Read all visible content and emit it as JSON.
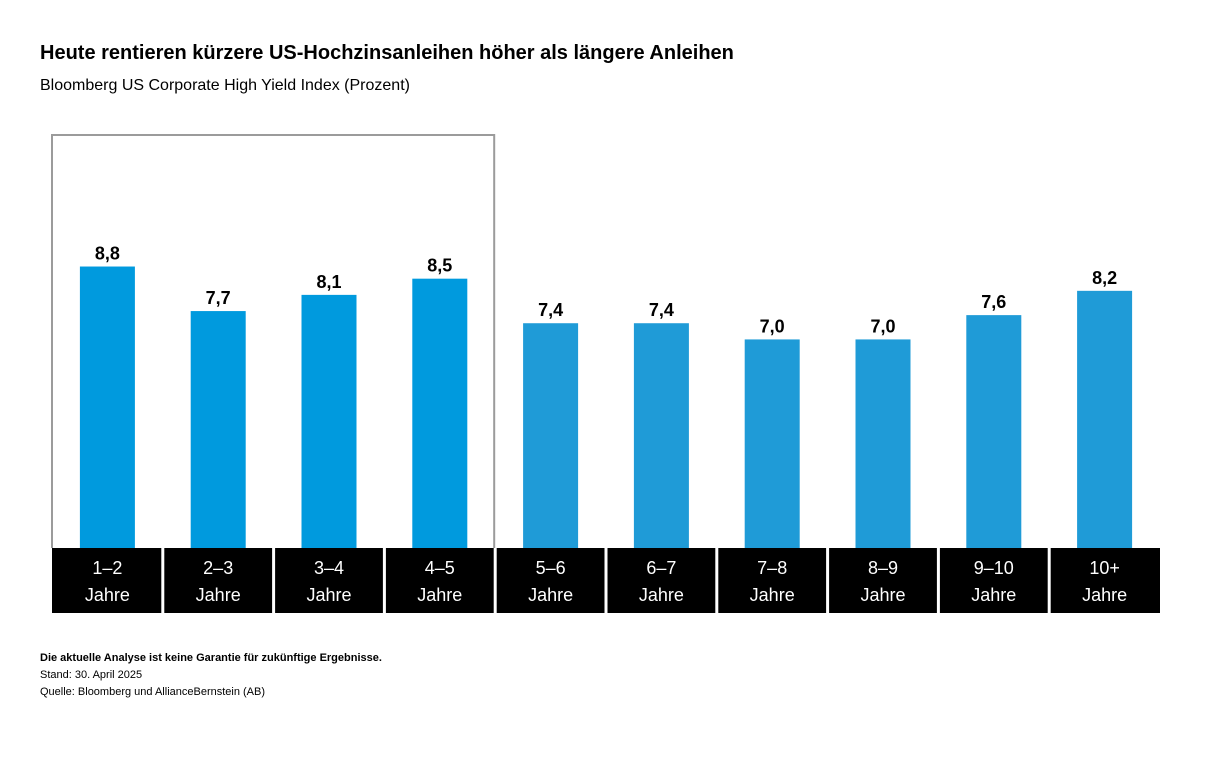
{
  "chart_data": {
    "type": "bar",
    "title": "Heute rentieren kürzere US-Hochzinsanleihen höher als längere Anleihen",
    "subtitle": "Bloomberg US Corporate High Yield Index (Prozent)",
    "categories": [
      [
        "1–2",
        "Jahre"
      ],
      [
        "2–3",
        "Jahre"
      ],
      [
        "3–4",
        "Jahre"
      ],
      [
        "4–5",
        "Jahre"
      ],
      [
        "5–6",
        "Jahre"
      ],
      [
        "6–7",
        "Jahre"
      ],
      [
        "7–8",
        "Jahre"
      ],
      [
        "8–9",
        "Jahre"
      ],
      [
        "9–10",
        "Jahre"
      ],
      [
        "10+",
        "Jahre"
      ]
    ],
    "values": [
      8.8,
      7.7,
      8.1,
      8.5,
      7.4,
      7.4,
      7.0,
      7.0,
      7.6,
      8.2
    ],
    "value_labels": [
      "8,8",
      "7,7",
      "8,1",
      "8,5",
      "7,4",
      "7,4",
      "7,0",
      "7,0",
      "7,6",
      "8,2"
    ],
    "highlight_range": [
      0,
      3
    ],
    "xlabel": "",
    "ylabel": "",
    "ylim": [
      0,
      10
    ],
    "grid": false,
    "colors": {
      "bar_highlight": "#009ADE",
      "bar": "#1F9BD7",
      "category_bg": "#000000",
      "category_text": "#FFFFFF",
      "highlight_frame": "#9B9B9B"
    }
  },
  "footnotes": {
    "disclaimer": "Die aktuelle Analyse ist keine Garantie für zukünftige Ergebnisse.",
    "date": "Stand: 30. April 2025",
    "source": "Quelle: Bloomberg und AllianceBernstein (AB)"
  }
}
